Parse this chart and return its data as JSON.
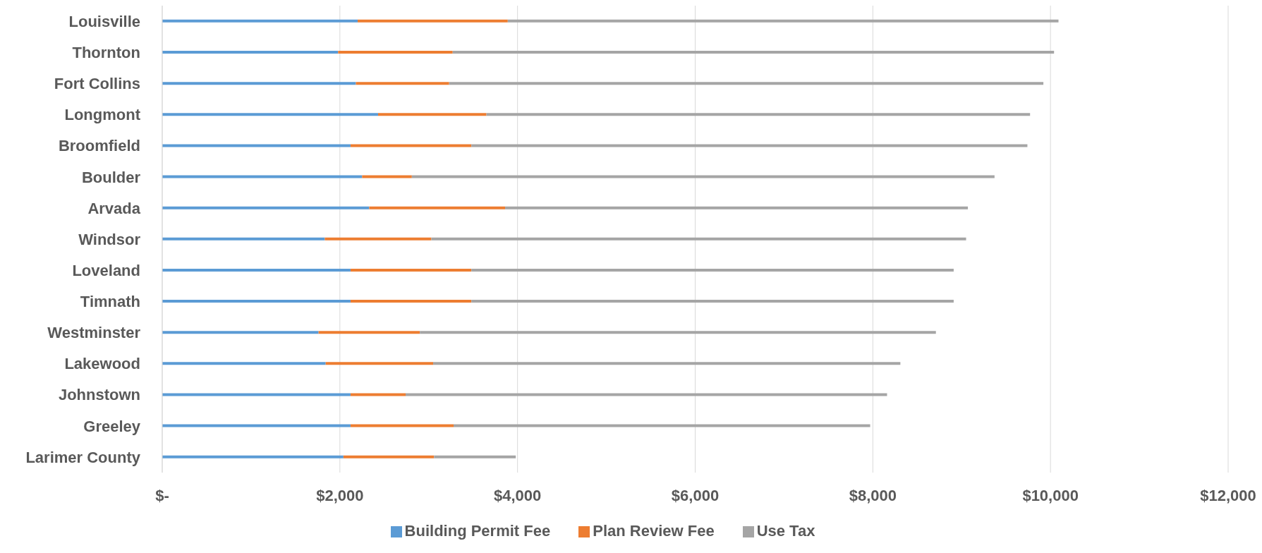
{
  "chart_data": {
    "type": "bar",
    "orientation": "horizontal",
    "stacked": true,
    "categories": [
      "Louisville",
      "Thornton",
      "Fort Collins",
      "Longmont",
      "Broomfield",
      "Boulder",
      "Arvada",
      "Windsor",
      "Loveland",
      "Timnath",
      "Westminster",
      "Lakewood",
      "Johnstown",
      "Greeley",
      "Larimer County"
    ],
    "series": [
      {
        "name": "Building Permit Fee",
        "color": "#5b9bd5",
        "values": [
          2200,
          1980,
          2180,
          2430,
          2120,
          2250,
          2330,
          1830,
          2120,
          2120,
          1760,
          1840,
          2120,
          2120,
          2040
        ]
      },
      {
        "name": "Plan Review Fee",
        "color": "#ed7d31",
        "values": [
          1690,
          1290,
          1050,
          1220,
          1360,
          560,
          1530,
          1200,
          1360,
          1360,
          1140,
          1210,
          620,
          1160,
          1020
        ]
      },
      {
        "name": "Use Tax",
        "color": "#a5a5a5",
        "values": [
          6200,
          6770,
          6690,
          6120,
          6260,
          6560,
          5210,
          6020,
          5430,
          5430,
          5810,
          5260,
          5420,
          4690,
          920
        ]
      }
    ],
    "xlim": [
      0,
      12000
    ],
    "xticks": [
      {
        "value": 0,
        "label": "$-"
      },
      {
        "value": 2000,
        "label": "$2,000"
      },
      {
        "value": 4000,
        "label": "$4,000"
      },
      {
        "value": 6000,
        "label": "$6,000"
      },
      {
        "value": 8000,
        "label": "$8,000"
      },
      {
        "value": 10000,
        "label": "$10,000"
      },
      {
        "value": 12000,
        "label": "$12,000"
      }
    ],
    "grid": "x",
    "legend": "bottom"
  }
}
